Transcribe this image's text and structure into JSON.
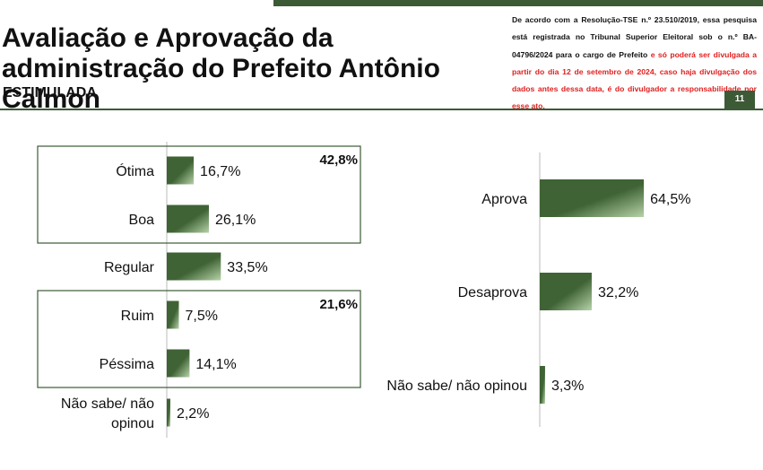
{
  "header": {
    "title": "Avaliação e Aprovação da administração do Prefeito Antônio Calmon",
    "subtitle": "ESTIMULADA",
    "notice_black": "De acordo com a Resolução-TSE n.º 23.510/2019, essa pesquisa está registrada no Tribunal Superior Eleitoral sob o n.º BA-04796/2024 para o cargo de Prefeito ",
    "notice_red": "e só poderá ser divulgada a partir do dia 12 de setembro de 2024, caso haja divulgação dos dados antes dessa data, é do divulgador a responsabilidade por esse ato.",
    "page_number": "11"
  },
  "colors": {
    "bar_dark": "#3f6335",
    "bar_light": "#b6d3a8",
    "accent": "#3d5a36",
    "axis": "#bbbbbb"
  },
  "chart_data": [
    {
      "type": "bar",
      "orientation": "horizontal",
      "categories": [
        "Ótima",
        "Boa",
        "Regular",
        "Ruim",
        "Péssima",
        "Não sabe/ não opinou"
      ],
      "values": [
        16.7,
        26.1,
        33.5,
        7.5,
        14.1,
        2.2
      ],
      "value_labels": [
        "16,7%",
        "26,1%",
        "33,5%",
        "7,5%",
        "14,1%",
        "2,2%"
      ],
      "groups": [
        {
          "label": "42,8%",
          "categories": [
            "Ótima",
            "Boa"
          ]
        },
        {
          "label": "21,6%",
          "categories": [
            "Ruim",
            "Péssima"
          ]
        }
      ],
      "xlim": [
        0,
        100
      ]
    },
    {
      "type": "bar",
      "orientation": "horizontal",
      "categories": [
        "Aprova",
        "Desaprova",
        "Não sabe/ não opinou"
      ],
      "values": [
        64.5,
        32.2,
        3.3
      ],
      "value_labels": [
        "64,5%",
        "32,2%",
        "3,3%"
      ],
      "xlim": [
        0,
        100
      ]
    }
  ]
}
